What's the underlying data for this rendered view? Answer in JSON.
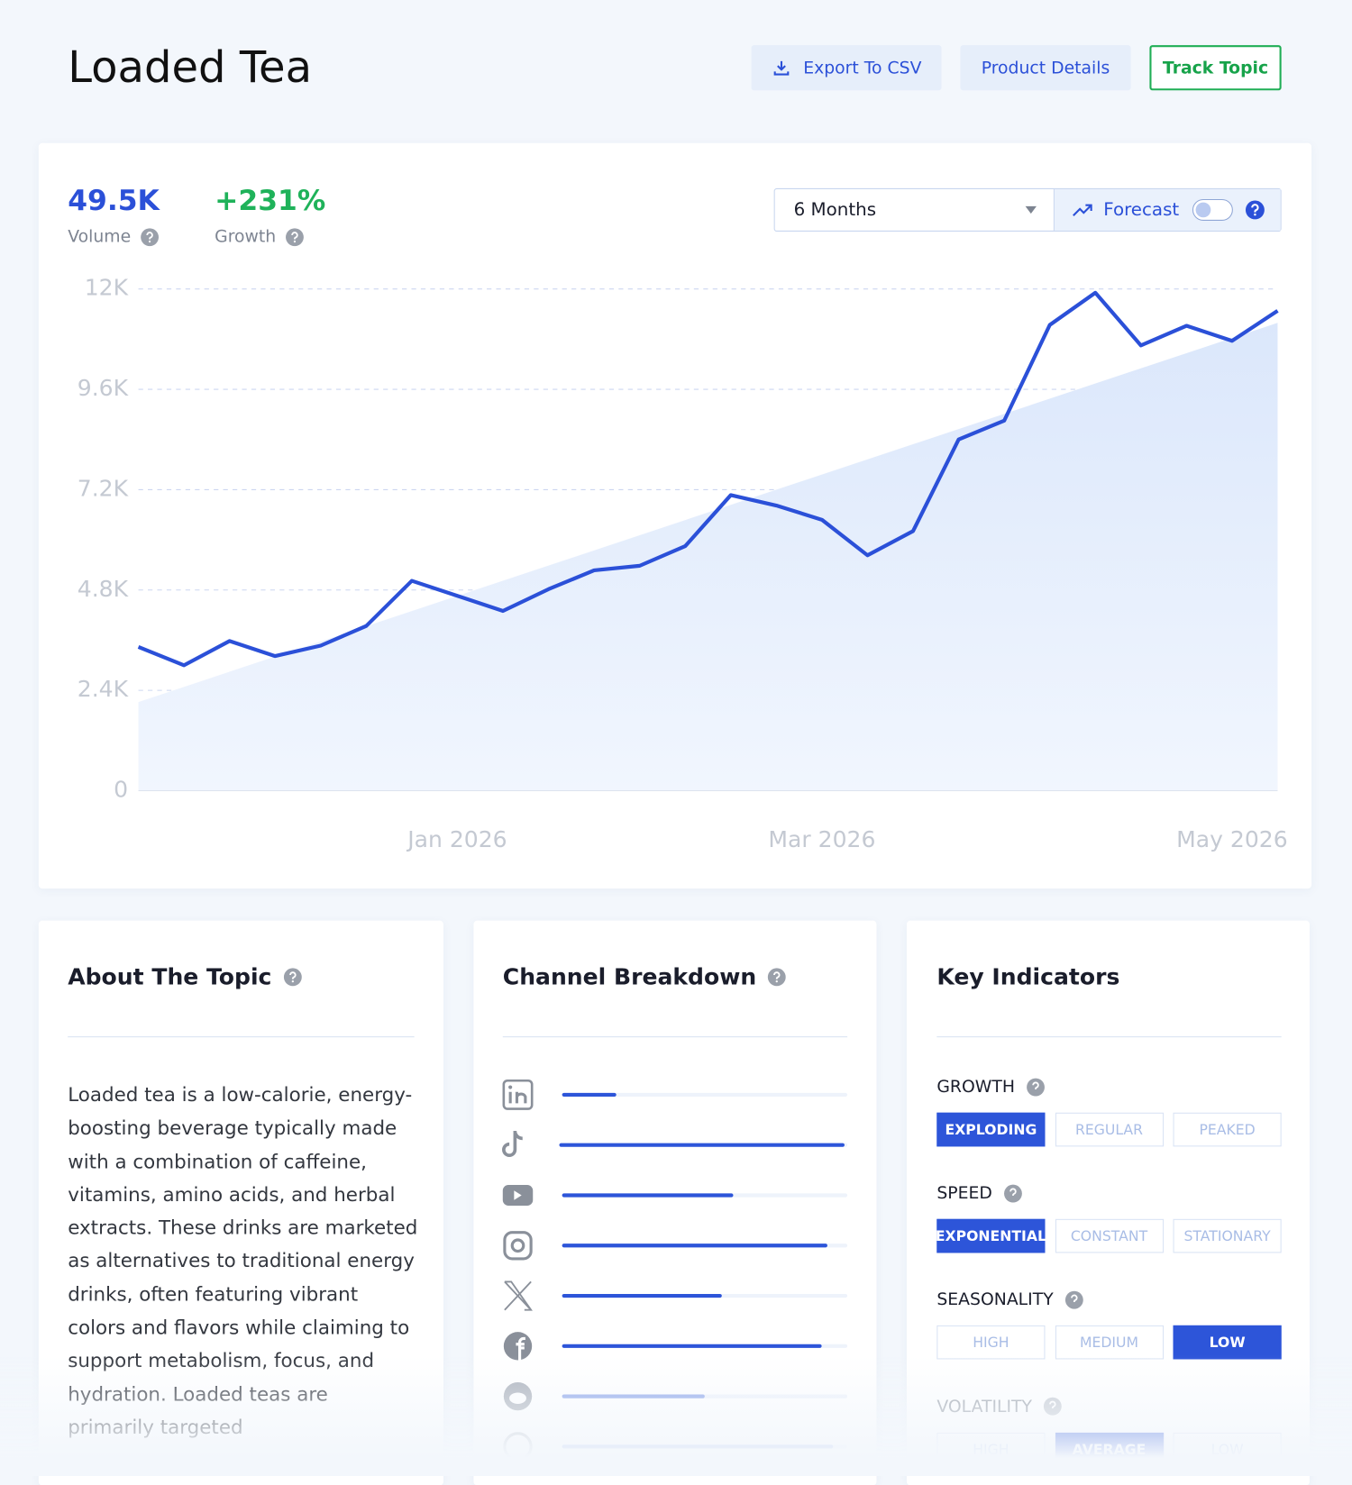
{
  "header": {
    "title": "Loaded Tea",
    "buttons": [
      "Export To CSV",
      "Product Details",
      "Track Topic"
    ]
  },
  "stats": [
    {
      "value": "49.5K",
      "label": "Volume"
    },
    {
      "value": "+231%",
      "label": "Growth"
    }
  ],
  "controls": {
    "period": "6 Months",
    "forecast": "Forecast"
  },
  "chart_data": {
    "type": "line",
    "color": "#2b50d8",
    "categories": [
      null,
      null,
      null,
      null,
      null,
      null,
      null,
      "Jan 2026",
      null,
      null,
      null,
      null,
      null,
      null,
      null,
      "Mar 2026",
      null,
      null,
      null,
      null,
      null,
      null,
      null,
      null,
      "May 2026",
      null
    ],
    "values": [
      3440,
      3000,
      3580,
      3220,
      3470,
      3940,
      5020,
      4660,
      4300,
      4820,
      5270,
      5380,
      5850,
      7070,
      6820,
      6480,
      5630,
      6210,
      8400,
      8850,
      11140,
      11910,
      10650,
      11120,
      10760,
      11480
    ],
    "trend_values": [
      2120,
      11190
    ],
    "ylim": [
      0,
      12000
    ],
    "yticks": [
      0,
      {
        "value": 2400,
        "label": "2.4K"
      },
      {
        "value": 4800,
        "label": "4.8K"
      },
      {
        "value": 7200,
        "label": "7.2K"
      },
      {
        "value": 9600,
        "label": "9.6K"
      },
      {
        "value": 12000,
        "label": "12K"
      }
    ],
    "grid": true
  },
  "about": {
    "title": "About The Topic",
    "text": "Loaded tea is a low-calorie, energy-boosting beverage typically made with a combination of caffeine, vitamins, amino acids, and herbal extracts. These drinks are marketed as alternatives to traditional energy drinks, often featuring vibrant colors and flavors while claiming to support metabolism, focus, and hydration. Loaded teas are primarily targeted"
  },
  "channels": {
    "title": "Channel Breakdown",
    "xlim": [
      0,
      100
    ],
    "values": [
      19,
      100,
      60,
      93,
      56,
      91,
      50,
      95
    ]
  },
  "indicators": {
    "title": "Key Indicators",
    "groups": [
      {
        "label": "GROWTH",
        "options": [
          "EXPLODING",
          "REGULAR",
          "PEAKED"
        ],
        "selected": 0
      },
      {
        "label": "SPEED",
        "options": [
          "EXPONENTIAL",
          "CONSTANT",
          "STATIONARY"
        ],
        "selected": 0
      },
      {
        "label": "SEASONALITY",
        "options": [
          "HIGH",
          "MEDIUM",
          "LOW"
        ],
        "selected": 2
      },
      {
        "label": "VOLATILITY",
        "options": [
          "HIGH",
          "AVERAGE",
          "LOW"
        ],
        "selected": 1
      }
    ]
  }
}
